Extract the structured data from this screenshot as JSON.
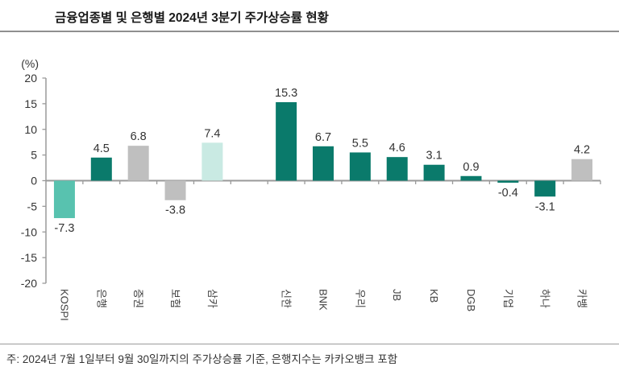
{
  "page": {
    "title": "금융업종별 및 은행별 2024년 3분기 주가상승률 현황",
    "footnote": "주: 2024년 7월 1일부터 9월 30일까지의 주가상승률 기준, 은행지수는 카카오뱅크 포함"
  },
  "colors": {
    "kospi_teal": "#58C2AF",
    "bank_teal": "#0A7A6B",
    "sector_gray": "#BFBFBF",
    "mint": "#C9EAE3",
    "axis_gray": "#9a9a9a",
    "tick_text": "#333333",
    "value_text": "#333333",
    "category_text": "#404040"
  },
  "chart_data": {
    "type": "bar",
    "title": "금융업종별 및 은행별 2024년 3분기 주가상승률 현황",
    "unit_label": "(%)",
    "xlabel": "",
    "ylabel": "(%)",
    "ylim": [
      -20,
      20
    ],
    "ytick_step": 5,
    "yticks": [
      "20",
      "15",
      "10",
      "5",
      "0",
      "-5",
      "-10",
      "-15",
      "-20"
    ],
    "ytick_values": [
      20,
      15,
      10,
      5,
      0,
      -5,
      -10,
      -15,
      -20
    ],
    "grid": false,
    "legend": "none",
    "gap_after_index": 4,
    "categories": [
      "KOSPI",
      "은행",
      "증권",
      "보험",
      "삼카",
      "신한",
      "BNK",
      "우리",
      "JB",
      "KB",
      "DGB",
      "기업",
      "하나",
      "카뱅"
    ],
    "values": [
      -7.3,
      4.5,
      6.8,
      -3.8,
      7.4,
      15.3,
      6.7,
      5.5,
      4.6,
      3.1,
      0.9,
      -0.4,
      -3.1,
      4.2
    ],
    "bars": [
      {
        "label": "KOSPI",
        "value": -7.3,
        "value_label": "-7.3",
        "color_key": "kospi_teal"
      },
      {
        "label": "은행",
        "value": 4.5,
        "value_label": "4.5",
        "color_key": "bank_teal"
      },
      {
        "label": "증권",
        "value": 6.8,
        "value_label": "6.8",
        "color_key": "sector_gray"
      },
      {
        "label": "보험",
        "value": -3.8,
        "value_label": "-3.8",
        "color_key": "sector_gray"
      },
      {
        "label": "삼카",
        "value": 7.4,
        "value_label": "7.4",
        "color_key": "mint"
      },
      {
        "label": "신한",
        "value": 15.3,
        "value_label": "15.3",
        "color_key": "bank_teal"
      },
      {
        "label": "BNK",
        "value": 6.7,
        "value_label": "6.7",
        "color_key": "bank_teal"
      },
      {
        "label": "우리",
        "value": 5.5,
        "value_label": "5.5",
        "color_key": "bank_teal"
      },
      {
        "label": "JB",
        "value": 4.6,
        "value_label": "4.6",
        "color_key": "bank_teal"
      },
      {
        "label": "KB",
        "value": 3.1,
        "value_label": "3.1",
        "color_key": "bank_teal"
      },
      {
        "label": "DGB",
        "value": 0.9,
        "value_label": "0.9",
        "color_key": "bank_teal"
      },
      {
        "label": "기업",
        "value": -0.4,
        "value_label": "-0.4",
        "color_key": "bank_teal"
      },
      {
        "label": "하나",
        "value": -3.1,
        "value_label": "-3.1",
        "color_key": "bank_teal"
      },
      {
        "label": "카뱅",
        "value": 4.2,
        "value_label": "4.2",
        "color_key": "sector_gray"
      }
    ]
  }
}
